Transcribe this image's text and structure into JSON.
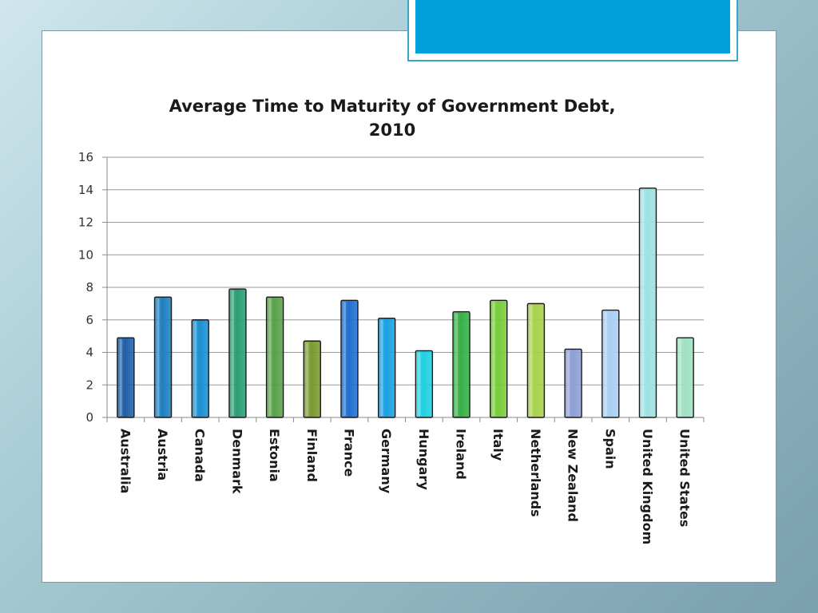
{
  "chart_data": {
    "type": "bar",
    "title_lines": [
      "Average Time to Maturity of Government Debt,",
      "2010"
    ],
    "xlabel": "",
    "ylabel": "",
    "ylim": [
      0,
      16
    ],
    "yticks": [
      0,
      2,
      4,
      6,
      8,
      10,
      12,
      14,
      16
    ],
    "grid": true,
    "legend": "none",
    "categories": [
      "Australia",
      "Austria",
      "Canada",
      "Denmark",
      "Estonia",
      "Finland",
      "France",
      "Germany",
      "Hungary",
      "Ireland",
      "Italy",
      "Netherlands",
      "New Zealand",
      "Spain",
      "United Kingdom",
      "United States"
    ],
    "values": [
      4.9,
      7.4,
      6.0,
      7.9,
      7.4,
      4.7,
      7.2,
      6.1,
      4.1,
      6.5,
      7.2,
      7.0,
      4.2,
      6.6,
      14.1,
      4.9
    ],
    "colors": [
      "#1f5fa8",
      "#1d7fc0",
      "#1a8fcf",
      "#2a9d74",
      "#58a24a",
      "#7a9a30",
      "#1e6fd0",
      "#1aa0e0",
      "#1fd0e0",
      "#36b045",
      "#78cc3a",
      "#a9d14a",
      "#8e9fd6",
      "#a8cff2",
      "#9ee0e3",
      "#9fe0c0"
    ]
  }
}
